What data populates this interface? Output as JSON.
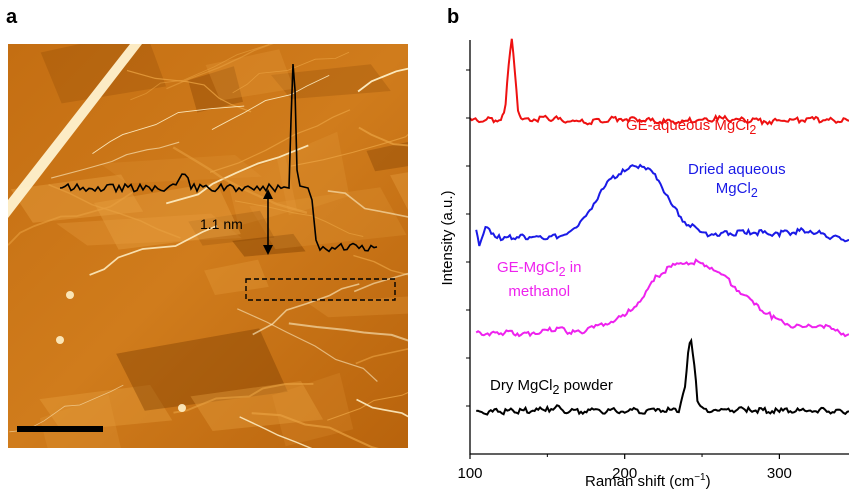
{
  "panels": {
    "a": "a",
    "b": "b"
  },
  "afm": {
    "height_label": "1.1 nm",
    "profile_color": "#000000",
    "image_palette": [
      "#7a3c00",
      "#c77215",
      "#e8a040",
      "#fff1c8"
    ]
  },
  "chart_data": {
    "type": "line",
    "xlabel": "Raman shift (cm−1)",
    "ylabel": "Intensity (a.u.)",
    "xlim": [
      100,
      345
    ],
    "xticks": [
      100,
      200,
      300
    ],
    "grid": false,
    "legend": "none (labels placed next to each spectrum)",
    "series": [
      {
        "name": "GE-aqueous MgCl2",
        "label_html": "GE-aqueous MgCl<sub>2</sub>",
        "color": "#ee1111",
        "offset": 3.55,
        "peak_x": 127,
        "x": [
          100,
          120,
          123,
          125,
          127,
          129,
          131,
          134,
          150,
          170,
          200,
          230,
          260,
          290,
          320,
          345
        ],
        "y": [
          0,
          0.02,
          0.18,
          0.72,
          1.0,
          0.62,
          0.12,
          0.0,
          0.04,
          -0.02,
          0.03,
          -0.02,
          0.03,
          -0.01,
          0.02,
          0.0
        ]
      },
      {
        "name": "Dried aqueous MgCl2",
        "label_html": "Dried aqueous<br>MgCl<sub>2</sub>",
        "color": "#1a1ae6",
        "offset": 2.1,
        "peak_x": 212,
        "x": [
          104,
          106,
          110,
          120,
          135,
          150,
          160,
          170,
          180,
          190,
          200,
          210,
          215,
          222,
          230,
          240,
          250,
          260,
          280,
          300,
          320,
          335,
          345
        ],
        "y": [
          0.12,
          -0.05,
          0.14,
          0.02,
          0.04,
          0.03,
          0.06,
          0.15,
          0.45,
          0.72,
          0.85,
          0.91,
          0.88,
          0.74,
          0.42,
          0.2,
          0.08,
          0.07,
          0.09,
          0.08,
          0.12,
          0.02,
          0.0
        ]
      },
      {
        "name": "GE-MgCl2 in methanol",
        "label_html": "GE-MgCl<sub>2</sub> in<br>methanol",
        "color": "#ee22ee",
        "offset": 0.95,
        "peak_x": 246,
        "x": [
          104,
          120,
          140,
          155,
          170,
          180,
          190,
          200,
          210,
          220,
          230,
          240,
          246,
          255,
          265,
          275,
          285,
          295,
          305,
          315,
          325,
          335,
          345
        ],
        "y": [
          0.0,
          0.02,
          0.0,
          0.06,
          0.02,
          0.07,
          0.15,
          0.22,
          0.42,
          0.68,
          0.82,
          0.87,
          0.88,
          0.83,
          0.68,
          0.52,
          0.36,
          0.22,
          0.12,
          0.08,
          0.12,
          0.04,
          0.0
        ]
      },
      {
        "name": "Dry MgCl2 powder",
        "label_html": "Dry MgCl<sub>2</sub> powder",
        "color": "#000000",
        "offset": 0.0,
        "peak_x": 243,
        "x": [
          104,
          130,
          150,
          155,
          160,
          180,
          200,
          220,
          235,
          239,
          241,
          243,
          245,
          247,
          250,
          260,
          280,
          300,
          320,
          345
        ],
        "y": [
          0.0,
          0.01,
          0.03,
          0.06,
          0.02,
          0.01,
          0.02,
          0.01,
          0.03,
          0.3,
          0.75,
          0.88,
          0.55,
          0.15,
          0.04,
          0.02,
          0.03,
          0.01,
          0.02,
          0.01
        ]
      }
    ]
  }
}
